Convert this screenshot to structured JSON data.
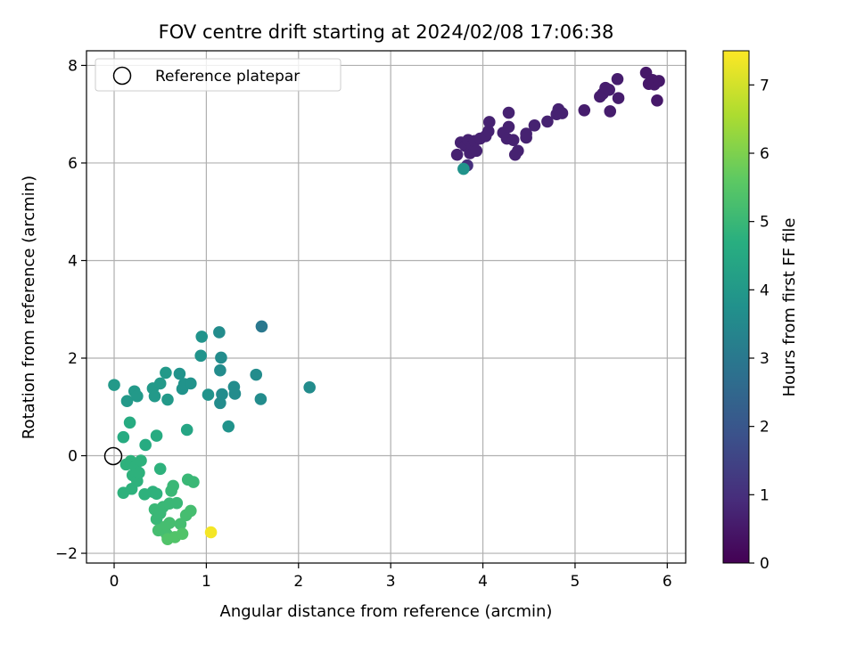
{
  "chart_data": {
    "type": "scatter",
    "title": "FOV centre drift starting at 2024/02/08 17:06:38",
    "xlabel": "Angular distance from reference (arcmin)",
    "ylabel": "Rotation from reference (arcmin)",
    "xlim": [
      -0.3,
      6.2
    ],
    "ylim": [
      -2.2,
      8.3
    ],
    "x_ticks": [
      0,
      1,
      2,
      3,
      4,
      5,
      6
    ],
    "y_ticks": [
      -2,
      0,
      2,
      4,
      6,
      8
    ],
    "x_tick_labels": [
      "0",
      "1",
      "2",
      "3",
      "4",
      "5",
      "6"
    ],
    "y_tick_labels": [
      "−2",
      "0",
      "2",
      "4",
      "6",
      "8"
    ],
    "grid": true,
    "legend": {
      "position": "top-left",
      "entries": [
        "Reference platepar"
      ]
    },
    "reference_point": {
      "x": 0,
      "y": 0
    },
    "colorbar": {
      "label": "Hours from first FF file",
      "colormap": "viridis",
      "range": [
        0,
        7.5
      ],
      "ticks": [
        0,
        1,
        2,
        3,
        4,
        5,
        6,
        7
      ],
      "tick_labels": [
        "0",
        "1",
        "2",
        "3",
        "4",
        "5",
        "6",
        "7"
      ]
    },
    "points": [
      {
        "x": 3.72,
        "y": 6.17,
        "h": 0.7
      },
      {
        "x": 3.76,
        "y": 6.42,
        "h": 0.7
      },
      {
        "x": 3.81,
        "y": 6.35,
        "h": 0.7
      },
      {
        "x": 3.84,
        "y": 6.47,
        "h": 0.7
      },
      {
        "x": 3.86,
        "y": 6.2,
        "h": 0.7
      },
      {
        "x": 3.89,
        "y": 6.37,
        "h": 0.7
      },
      {
        "x": 3.91,
        "y": 6.45,
        "h": 0.7
      },
      {
        "x": 3.93,
        "y": 6.25,
        "h": 0.7
      },
      {
        "x": 3.97,
        "y": 6.5,
        "h": 0.7
      },
      {
        "x": 4.03,
        "y": 6.55,
        "h": 0.7
      },
      {
        "x": 4.06,
        "y": 6.65,
        "h": 0.7
      },
      {
        "x": 4.07,
        "y": 6.84,
        "h": 0.7
      },
      {
        "x": 4.22,
        "y": 6.62,
        "h": 0.7
      },
      {
        "x": 4.26,
        "y": 6.5,
        "h": 0.7
      },
      {
        "x": 4.28,
        "y": 6.74,
        "h": 0.7
      },
      {
        "x": 4.28,
        "y": 7.03,
        "h": 0.7
      },
      {
        "x": 4.33,
        "y": 6.47,
        "h": 0.7
      },
      {
        "x": 4.35,
        "y": 6.17,
        "h": 0.7
      },
      {
        "x": 4.38,
        "y": 6.25,
        "h": 0.7
      },
      {
        "x": 4.47,
        "y": 6.52,
        "h": 0.7
      },
      {
        "x": 4.47,
        "y": 6.6,
        "h": 0.7
      },
      {
        "x": 4.56,
        "y": 6.77,
        "h": 0.7
      },
      {
        "x": 4.7,
        "y": 6.85,
        "h": 0.7
      },
      {
        "x": 4.8,
        "y": 7.0,
        "h": 0.7
      },
      {
        "x": 4.82,
        "y": 7.1,
        "h": 0.7
      },
      {
        "x": 4.86,
        "y": 7.02,
        "h": 0.7
      },
      {
        "x": 5.1,
        "y": 7.08,
        "h": 0.6
      },
      {
        "x": 5.27,
        "y": 7.36,
        "h": 0.6
      },
      {
        "x": 5.3,
        "y": 7.42,
        "h": 0.6
      },
      {
        "x": 5.33,
        "y": 7.54,
        "h": 0.6
      },
      {
        "x": 5.37,
        "y": 7.5,
        "h": 0.6
      },
      {
        "x": 5.38,
        "y": 7.06,
        "h": 0.6
      },
      {
        "x": 5.46,
        "y": 7.72,
        "h": 0.6
      },
      {
        "x": 5.47,
        "y": 7.33,
        "h": 0.6
      },
      {
        "x": 5.77,
        "y": 7.85,
        "h": 0.5
      },
      {
        "x": 5.8,
        "y": 7.62,
        "h": 0.5
      },
      {
        "x": 5.84,
        "y": 7.7,
        "h": 0.5
      },
      {
        "x": 5.86,
        "y": 7.61,
        "h": 0.5
      },
      {
        "x": 5.89,
        "y": 7.28,
        "h": 0.5
      },
      {
        "x": 5.91,
        "y": 7.68,
        "h": 0.5
      },
      {
        "x": 3.83,
        "y": 5.95,
        "h": 1.0
      },
      {
        "x": 3.79,
        "y": 5.88,
        "h": 3.8
      },
      {
        "x": 0.0,
        "y": 1.45,
        "h": 4.0
      },
      {
        "x": 0.14,
        "y": 1.12,
        "h": 4.0
      },
      {
        "x": 0.22,
        "y": 1.32,
        "h": 4.0
      },
      {
        "x": 0.25,
        "y": 1.22,
        "h": 4.0
      },
      {
        "x": 0.42,
        "y": 1.38,
        "h": 4.0
      },
      {
        "x": 0.44,
        "y": 1.22,
        "h": 4.0
      },
      {
        "x": 0.5,
        "y": 1.48,
        "h": 4.0
      },
      {
        "x": 0.56,
        "y": 1.7,
        "h": 4.0
      },
      {
        "x": 0.58,
        "y": 1.15,
        "h": 4.0
      },
      {
        "x": 0.71,
        "y": 1.68,
        "h": 3.8
      },
      {
        "x": 0.74,
        "y": 1.37,
        "h": 3.8
      },
      {
        "x": 0.76,
        "y": 1.47,
        "h": 3.8
      },
      {
        "x": 0.83,
        "y": 1.48,
        "h": 3.8
      },
      {
        "x": 0.94,
        "y": 2.05,
        "h": 3.8
      },
      {
        "x": 0.95,
        "y": 2.44,
        "h": 3.8
      },
      {
        "x": 1.02,
        "y": 1.25,
        "h": 3.8
      },
      {
        "x": 1.14,
        "y": 2.53,
        "h": 3.6
      },
      {
        "x": 1.15,
        "y": 1.75,
        "h": 3.6
      },
      {
        "x": 1.15,
        "y": 1.08,
        "h": 3.6
      },
      {
        "x": 1.16,
        "y": 2.01,
        "h": 3.6
      },
      {
        "x": 1.17,
        "y": 1.26,
        "h": 3.6
      },
      {
        "x": 1.24,
        "y": 0.6,
        "h": 3.8
      },
      {
        "x": 1.3,
        "y": 1.41,
        "h": 3.6
      },
      {
        "x": 1.31,
        "y": 1.27,
        "h": 3.6
      },
      {
        "x": 1.54,
        "y": 1.66,
        "h": 3.6
      },
      {
        "x": 1.59,
        "y": 1.16,
        "h": 3.6
      },
      {
        "x": 1.6,
        "y": 2.65,
        "h": 3.0
      },
      {
        "x": 2.12,
        "y": 1.4,
        "h": 3.6
      },
      {
        "x": 0.1,
        "y": 0.38,
        "h": 4.6
      },
      {
        "x": 0.17,
        "y": 0.68,
        "h": 4.6
      },
      {
        "x": 0.34,
        "y": 0.22,
        "h": 4.6
      },
      {
        "x": 0.46,
        "y": 0.41,
        "h": 4.6
      },
      {
        "x": 0.79,
        "y": 0.53,
        "h": 4.4
      },
      {
        "x": 0.1,
        "y": -0.76,
        "h": 4.8
      },
      {
        "x": 0.13,
        "y": -0.18,
        "h": 4.8
      },
      {
        "x": 0.18,
        "y": -0.11,
        "h": 4.8
      },
      {
        "x": 0.19,
        "y": -0.68,
        "h": 4.8
      },
      {
        "x": 0.2,
        "y": -0.4,
        "h": 4.8
      },
      {
        "x": 0.23,
        "y": -0.22,
        "h": 4.8
      },
      {
        "x": 0.25,
        "y": -0.52,
        "h": 4.8
      },
      {
        "x": 0.27,
        "y": -0.35,
        "h": 4.8
      },
      {
        "x": 0.29,
        "y": -0.1,
        "h": 4.8
      },
      {
        "x": 0.33,
        "y": -0.79,
        "h": 4.8
      },
      {
        "x": 0.42,
        "y": -0.74,
        "h": 4.8
      },
      {
        "x": 0.46,
        "y": -0.78,
        "h": 4.8
      },
      {
        "x": 0.5,
        "y": -0.27,
        "h": 4.8
      },
      {
        "x": 0.44,
        "y": -1.1,
        "h": 5.0
      },
      {
        "x": 0.46,
        "y": -1.3,
        "h": 5.0
      },
      {
        "x": 0.48,
        "y": -1.53,
        "h": 5.2
      },
      {
        "x": 0.5,
        "y": -1.18,
        "h": 5.0
      },
      {
        "x": 0.53,
        "y": -1.05,
        "h": 5.0
      },
      {
        "x": 0.55,
        "y": -1.46,
        "h": 5.2
      },
      {
        "x": 0.57,
        "y": -1.61,
        "h": 5.2
      },
      {
        "x": 0.58,
        "y": -1.71,
        "h": 5.4
      },
      {
        "x": 0.6,
        "y": -0.98,
        "h": 5.0
      },
      {
        "x": 0.6,
        "y": -1.38,
        "h": 5.2
      },
      {
        "x": 0.62,
        "y": -0.72,
        "h": 5.0
      },
      {
        "x": 0.64,
        "y": -0.62,
        "h": 5.0
      },
      {
        "x": 0.66,
        "y": -1.67,
        "h": 5.4
      },
      {
        "x": 0.68,
        "y": -0.97,
        "h": 5.0
      },
      {
        "x": 0.72,
        "y": -1.4,
        "h": 5.2
      },
      {
        "x": 0.74,
        "y": -1.6,
        "h": 5.4
      },
      {
        "x": 0.78,
        "y": -1.22,
        "h": 5.2
      },
      {
        "x": 0.8,
        "y": -0.49,
        "h": 5.0
      },
      {
        "x": 0.83,
        "y": -1.13,
        "h": 5.2
      },
      {
        "x": 0.86,
        "y": -0.54,
        "h": 5.0
      },
      {
        "x": 1.05,
        "y": -1.57,
        "h": 7.4
      }
    ]
  }
}
